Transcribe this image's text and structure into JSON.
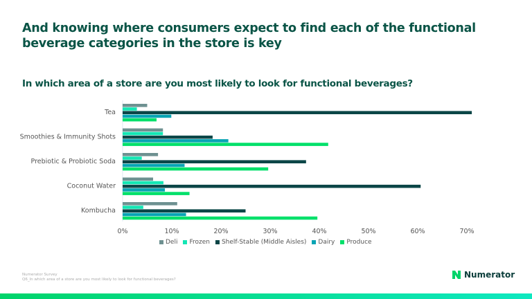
{
  "header": {
    "title": "And knowing where consumers expect to find each of the functional beverage categories in the store is key"
  },
  "chart_data": {
    "type": "bar",
    "orientation": "horizontal",
    "title": "In which area of a store are you most likely to look for functional beverages?",
    "categories": [
      "Tea",
      "Smoothies & Immunity Shots",
      "Prebiotic & Probiotic Soda",
      "Coconut Water",
      "Kombucha"
    ],
    "series": [
      {
        "name": "Deli",
        "color": "#6e9191",
        "values": [
          5.0,
          8.2,
          7.2,
          6.2,
          11.1
        ]
      },
      {
        "name": "Frozen",
        "color": "#14e6b4",
        "values": [
          2.9,
          8.2,
          3.9,
          8.3,
          4.2
        ]
      },
      {
        "name": "Shelf-Stable (Middle Aisles)",
        "color": "#0b4647",
        "values": [
          71.0,
          18.3,
          37.3,
          60.6,
          25.0
        ]
      },
      {
        "name": "Dairy",
        "color": "#08a4b4",
        "values": [
          9.9,
          21.5,
          12.6,
          8.6,
          12.9
        ]
      },
      {
        "name": "Produce",
        "color": "#00e06a",
        "values": [
          6.9,
          41.8,
          29.6,
          13.6,
          39.6
        ]
      }
    ],
    "xticks": [
      "0%",
      "10%",
      "20%",
      "30%",
      "40%",
      "50%",
      "60%",
      "70%"
    ],
    "xlim": [
      0,
      75
    ],
    "grid": false,
    "legend": "bottom"
  },
  "footer": {
    "source": "Numerator Survey",
    "question": "Q6_In which area of a store are you most likely to look for functional beverages?",
    "logo": "Numerator"
  }
}
